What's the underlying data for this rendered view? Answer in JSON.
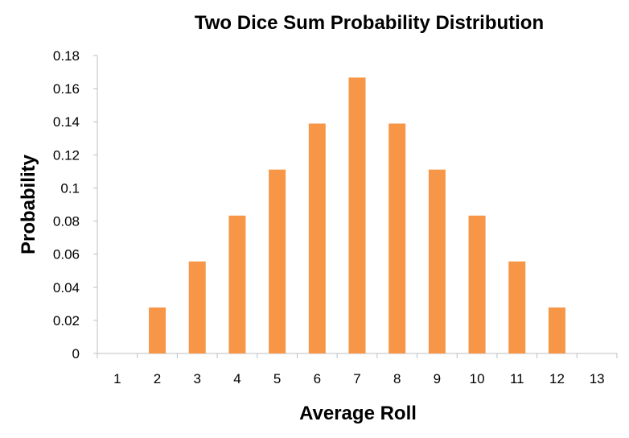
{
  "chart_data": {
    "type": "bar",
    "title": "Two Dice Sum Probability Distribution",
    "xlabel": "Average Roll",
    "ylabel": "Probability",
    "categories": [
      "1",
      "2",
      "3",
      "4",
      "5",
      "6",
      "7",
      "8",
      "9",
      "10",
      "11",
      "12",
      "13"
    ],
    "values": [
      0,
      0.0278,
      0.0556,
      0.0833,
      0.1111,
      0.1389,
      0.1667,
      0.1389,
      0.1111,
      0.0833,
      0.0556,
      0.0278,
      0
    ],
    "ylim": [
      0,
      0.18
    ],
    "yticks": [
      "0",
      "0.02",
      "0.04",
      "0.06",
      "0.08",
      "0.1",
      "0.12",
      "0.14",
      "0.16",
      "0.18"
    ],
    "grid": false,
    "legend": "none",
    "bar_color": "#F79646",
    "axis_color": "#BFBFBF"
  }
}
